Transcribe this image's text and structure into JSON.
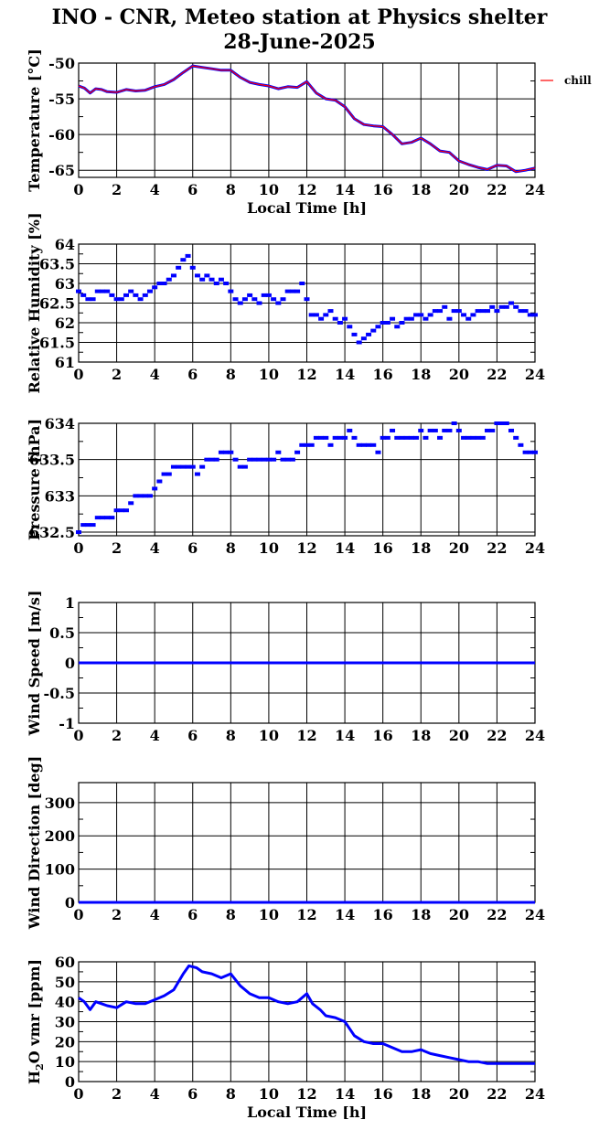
{
  "title_line1": "INO - CNR, Meteo station at Physics shelter",
  "title_line2": "28-June-2025",
  "legend_label": "chill",
  "colors": {
    "data": "#0000ff",
    "chill": "#ff0000",
    "axis": "#000000"
  },
  "chart_data": [
    {
      "type": "line",
      "ylabel": "Temperature [°C]",
      "xlabel": "Local Time [h]",
      "xlim": [
        0,
        24
      ],
      "ylim": [
        -66,
        -50
      ],
      "xticks": [
        0,
        2,
        4,
        6,
        8,
        10,
        12,
        14,
        16,
        18,
        20,
        22,
        24
      ],
      "yticks": [
        -65,
        -60,
        -55,
        -50
      ],
      "legend": "right",
      "series": [
        {
          "name": "",
          "color": "#0000ff",
          "x": [
            0,
            0.3,
            0.6,
            0.9,
            1.2,
            1.5,
            2,
            2.5,
            3,
            3.5,
            4,
            4.5,
            5,
            5.5,
            6,
            6.5,
            7,
            7.5,
            8,
            8.5,
            9,
            9.5,
            10,
            10.5,
            11,
            11.5,
            12,
            12.5,
            13,
            13.5,
            14,
            14.5,
            15,
            15.5,
            16,
            16.5,
            17,
            17.5,
            18,
            18.5,
            19,
            19.5,
            20,
            20.5,
            21,
            21.5,
            22,
            22.5,
            23,
            23.5,
            24
          ],
          "y": [
            -53.2,
            -53.5,
            -54.2,
            -53.6,
            -53.7,
            -54,
            -54.1,
            -53.7,
            -53.9,
            -53.8,
            -53.3,
            -53,
            -52.3,
            -51.3,
            -50.4,
            -50.6,
            -50.8,
            -51,
            -51,
            -52,
            -52.7,
            -53,
            -53.2,
            -53.6,
            -53.3,
            -53.4,
            -52.6,
            -54.2,
            -55,
            -55.2,
            -56.1,
            -57.8,
            -58.6,
            -58.8,
            -58.9,
            -60,
            -61.3,
            -61.1,
            -60.5,
            -61.3,
            -62.3,
            -62.5,
            -63.7,
            -64.2,
            -64.6,
            -64.9,
            -64.3,
            -64.4,
            -65.2,
            -65,
            -64.7
          ]
        },
        {
          "name": "chill",
          "color": "#ff0000",
          "x": [
            0,
            0.3,
            0.6,
            0.9,
            1.2,
            1.5,
            2,
            2.5,
            3,
            3.5,
            4,
            4.5,
            5,
            5.5,
            6,
            6.5,
            7,
            7.5,
            8,
            8.5,
            9,
            9.5,
            10,
            10.5,
            11,
            11.5,
            12,
            12.5,
            13,
            13.5,
            14,
            14.5,
            15,
            15.5,
            16,
            16.5,
            17,
            17.5,
            18,
            18.5,
            19,
            19.5,
            20,
            20.5,
            21,
            21.5,
            22,
            22.5,
            23,
            23.5,
            24
          ],
          "y": [
            -53.2,
            -53.5,
            -54.2,
            -53.6,
            -53.7,
            -54,
            -54.1,
            -53.7,
            -53.9,
            -53.8,
            -53.3,
            -53,
            -52.3,
            -51.3,
            -50.4,
            -50.6,
            -50.8,
            -51,
            -51,
            -52,
            -52.7,
            -53,
            -53.2,
            -53.6,
            -53.3,
            -53.4,
            -52.6,
            -54.2,
            -55,
            -55.2,
            -56.1,
            -57.8,
            -58.6,
            -58.8,
            -58.9,
            -60,
            -61.3,
            -61.1,
            -60.5,
            -61.3,
            -62.3,
            -62.5,
            -63.7,
            -64.2,
            -64.6,
            -64.9,
            -64.3,
            -64.4,
            -65.2,
            -65,
            -64.7
          ]
        }
      ]
    },
    {
      "type": "scatter",
      "ylabel": "Relative Humidity [%]",
      "xlabel": "",
      "xlim": [
        0,
        24
      ],
      "ylim": [
        61,
        64
      ],
      "xticks": [
        0,
        2,
        4,
        6,
        8,
        10,
        12,
        14,
        16,
        18,
        20,
        22,
        24
      ],
      "yticks": [
        61,
        61.5,
        62,
        62.5,
        63,
        63.5,
        64
      ],
      "series": [
        {
          "name": "",
          "color": "#0000ff",
          "x": [
            0,
            0.25,
            0.5,
            0.75,
            1,
            1.25,
            1.5,
            1.75,
            2,
            2.25,
            2.5,
            2.75,
            3,
            3.25,
            3.5,
            3.75,
            4,
            4.25,
            4.5,
            4.75,
            5,
            5.25,
            5.5,
            5.75,
            6,
            6.25,
            6.5,
            6.75,
            7,
            7.25,
            7.5,
            7.75,
            8,
            8.25,
            8.5,
            8.75,
            9,
            9.25,
            9.5,
            9.75,
            10,
            10.25,
            10.5,
            10.75,
            11,
            11.25,
            11.5,
            11.75,
            12,
            12.25,
            12.5,
            12.75,
            13,
            13.25,
            13.5,
            13.75,
            14,
            14.25,
            14.5,
            14.75,
            15,
            15.25,
            15.5,
            15.75,
            16,
            16.25,
            16.5,
            16.75,
            17,
            17.25,
            17.5,
            17.75,
            18,
            18.25,
            18.5,
            18.75,
            19,
            19.25,
            19.5,
            19.75,
            20,
            20.25,
            20.5,
            20.75,
            21,
            21.25,
            21.5,
            21.75,
            22,
            22.25,
            22.5,
            22.75,
            23,
            23.25,
            23.5,
            23.75,
            24
          ],
          "y": [
            62.8,
            62.7,
            62.6,
            62.6,
            62.8,
            62.8,
            62.8,
            62.7,
            62.6,
            62.6,
            62.7,
            62.8,
            62.7,
            62.6,
            62.7,
            62.8,
            62.9,
            63,
            63,
            63.1,
            63.2,
            63.4,
            63.6,
            63.7,
            63.4,
            63.2,
            63.1,
            63.2,
            63.1,
            63,
            63.1,
            63,
            62.8,
            62.6,
            62.5,
            62.6,
            62.7,
            62.6,
            62.5,
            62.7,
            62.7,
            62.6,
            62.5,
            62.6,
            62.8,
            62.8,
            62.8,
            63,
            62.6,
            62.2,
            62.2,
            62.1,
            62.2,
            62.3,
            62.1,
            62,
            62.1,
            61.9,
            61.7,
            61.5,
            61.6,
            61.7,
            61.8,
            61.9,
            62,
            62,
            62.1,
            61.9,
            62,
            62.1,
            62.1,
            62.2,
            62.2,
            62.1,
            62.2,
            62.3,
            62.3,
            62.4,
            62.1,
            62.3,
            62.3,
            62.2,
            62.1,
            62.2,
            62.3,
            62.3,
            62.3,
            62.4,
            62.3,
            62.4,
            62.4,
            62.5,
            62.4,
            62.3,
            62.3,
            62.2,
            62.2
          ]
        }
      ]
    },
    {
      "type": "scatter",
      "ylabel": "Pressure [hPa]",
      "xlabel": "",
      "xlim": [
        0,
        24
      ],
      "ylim": [
        632.45,
        634
      ],
      "xticks": [
        0,
        2,
        4,
        6,
        8,
        10,
        12,
        14,
        16,
        18,
        20,
        22,
        24
      ],
      "yticks": [
        632.5,
        633,
        633.5,
        634
      ],
      "series": [
        {
          "name": "",
          "color": "#0000ff",
          "x": [
            0,
            0.25,
            0.5,
            0.75,
            1,
            1.25,
            1.5,
            1.75,
            2,
            2.25,
            2.5,
            2.75,
            3,
            3.25,
            3.5,
            3.75,
            4,
            4.25,
            4.5,
            4.75,
            5,
            5.25,
            5.5,
            5.75,
            6,
            6.25,
            6.5,
            6.75,
            7,
            7.25,
            7.5,
            7.75,
            8,
            8.25,
            8.5,
            8.75,
            9,
            9.25,
            9.5,
            9.75,
            10,
            10.25,
            10.5,
            10.75,
            11,
            11.25,
            11.5,
            11.75,
            12,
            12.25,
            12.5,
            12.75,
            13,
            13.25,
            13.5,
            13.75,
            14,
            14.25,
            14.5,
            14.75,
            15,
            15.25,
            15.5,
            15.75,
            16,
            16.25,
            16.5,
            16.75,
            17,
            17.25,
            17.5,
            17.75,
            18,
            18.25,
            18.5,
            18.75,
            19,
            19.25,
            19.5,
            19.75,
            20,
            20.25,
            20.5,
            20.75,
            21,
            21.25,
            21.5,
            21.75,
            22,
            22.25,
            22.5,
            22.75,
            23,
            23.25,
            23.5,
            23.75,
            24
          ],
          "y": [
            632.5,
            632.6,
            632.6,
            632.6,
            632.7,
            632.7,
            632.7,
            632.7,
            632.8,
            632.8,
            632.8,
            632.9,
            633,
            633,
            633,
            633,
            633.1,
            633.2,
            633.3,
            633.3,
            633.4,
            633.4,
            633.4,
            633.4,
            633.4,
            633.3,
            633.4,
            633.5,
            633.5,
            633.5,
            633.6,
            633.6,
            633.6,
            633.5,
            633.4,
            633.4,
            633.5,
            633.5,
            633.5,
            633.5,
            633.5,
            633.5,
            633.6,
            633.5,
            633.5,
            633.5,
            633.6,
            633.7,
            633.7,
            633.7,
            633.8,
            633.8,
            633.8,
            633.7,
            633.8,
            633.8,
            633.8,
            633.9,
            633.8,
            633.7,
            633.7,
            633.7,
            633.7,
            633.6,
            633.8,
            633.8,
            633.9,
            633.8,
            633.8,
            633.8,
            633.8,
            633.8,
            633.9,
            633.8,
            633.9,
            633.9,
            633.8,
            633.9,
            633.9,
            634,
            633.9,
            633.8,
            633.8,
            633.8,
            633.8,
            633.8,
            633.9,
            633.9,
            634,
            634,
            634,
            633.9,
            633.8,
            633.7,
            633.6,
            633.6,
            633.6
          ]
        }
      ]
    },
    {
      "type": "line",
      "ylabel": "Wind Speed [m/s]",
      "xlabel": "",
      "xlim": [
        0,
        24
      ],
      "ylim": [
        -1,
        1
      ],
      "xticks": [
        0,
        2,
        4,
        6,
        8,
        10,
        12,
        14,
        16,
        18,
        20,
        22,
        24
      ],
      "yticks": [
        -1,
        -0.5,
        0,
        0.5,
        1
      ],
      "series": [
        {
          "name": "",
          "color": "#0000ff",
          "x": [
            0,
            24
          ],
          "y": [
            0,
            0
          ]
        }
      ]
    },
    {
      "type": "line",
      "ylabel": "Wind Direction [deg]",
      "xlabel": "",
      "xlim": [
        0,
        24
      ],
      "ylim": [
        0,
        360
      ],
      "xticks": [
        0,
        2,
        4,
        6,
        8,
        10,
        12,
        14,
        16,
        18,
        20,
        22,
        24
      ],
      "yticks": [
        0,
        100,
        200,
        300
      ],
      "series": [
        {
          "name": "",
          "color": "#0000ff",
          "x": [
            0,
            24
          ],
          "y": [
            0,
            0
          ]
        }
      ]
    },
    {
      "type": "line",
      "ylabel": "H2O vmr [ppm]",
      "xlabel": "Local Time [h]",
      "xlim": [
        0,
        24
      ],
      "ylim": [
        0,
        60
      ],
      "xticks": [
        0,
        2,
        4,
        6,
        8,
        10,
        12,
        14,
        16,
        18,
        20,
        22,
        24
      ],
      "yticks": [
        0,
        10,
        20,
        30,
        40,
        50,
        60
      ],
      "series": [
        {
          "name": "",
          "color": "#0000ff",
          "x": [
            0,
            0.3,
            0.6,
            0.9,
            1.2,
            1.5,
            2,
            2.5,
            3,
            3.5,
            4,
            4.5,
            5,
            5.5,
            5.8,
            6.2,
            6.5,
            7,
            7.5,
            8,
            8.5,
            9,
            9.5,
            10,
            10.5,
            11,
            11.5,
            12,
            12.3,
            12.7,
            13,
            13.5,
            14,
            14.5,
            15,
            15.5,
            16,
            16.5,
            17,
            17.5,
            18,
            18.5,
            19,
            19.5,
            20,
            20.5,
            21,
            21.5,
            22,
            22.5,
            23,
            23.5,
            24
          ],
          "y": [
            42,
            40,
            36,
            40,
            39,
            38,
            37,
            40,
            39,
            39,
            41,
            43,
            46,
            54,
            58,
            57,
            55,
            54,
            52,
            54,
            48,
            44,
            42,
            42,
            40,
            39,
            40,
            44,
            39,
            36,
            33,
            32,
            30,
            23,
            20,
            19,
            19,
            17,
            15,
            15,
            16,
            14,
            13,
            12,
            11,
            10,
            10,
            9,
            9,
            9,
            9,
            9,
            9
          ]
        }
      ]
    }
  ]
}
